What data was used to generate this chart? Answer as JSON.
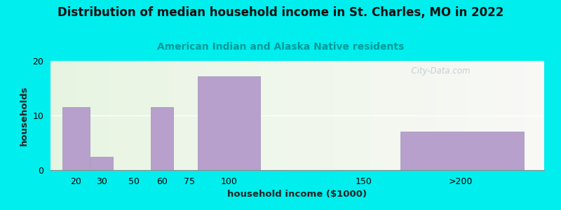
{
  "title": "Distribution of median household income in St. Charles, MO in 2022",
  "subtitle": "American Indian and Alaska Native residents",
  "xlabel": "household income ($1000)",
  "ylabel": "households",
  "background_outer": "#00EEEE",
  "bar_color": "#b8a0cc",
  "bar_edge_color": "#a090bb",
  "title_fontsize": 12,
  "subtitle_fontsize": 10,
  "subtitle_color": "#009999",
  "label_fontsize": 9.5,
  "tick_fontsize": 9,
  "watermark": "  City-Data.com",
  "ylim": [
    0,
    20
  ],
  "yticks": [
    0,
    10,
    20
  ],
  "categories": [
    "20",
    "30",
    "50",
    "60",
    "75",
    "100",
    "150",
    ">200"
  ],
  "values": [
    11.5,
    2.5,
    0,
    11.5,
    0,
    17.2,
    0,
    7.0
  ],
  "bar_lefts": [
    10,
    22,
    35,
    48,
    60,
    68,
    112,
    155
  ],
  "bar_widths": [
    12,
    10,
    0,
    10,
    0,
    28,
    0,
    55
  ],
  "xtick_labels": [
    "20",
    "30",
    "50",
    "60",
    "75",
    "100",
    "150",
    ">200"
  ],
  "xtick_positions": [
    16,
    27,
    41,
    53,
    65,
    82,
    140,
    182
  ],
  "xlim": [
    5,
    218
  ]
}
